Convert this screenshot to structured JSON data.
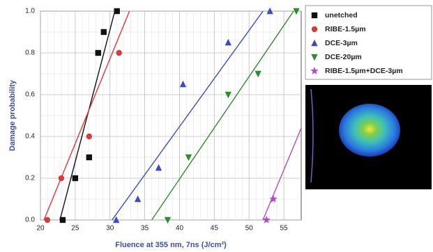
{
  "chart_data": {
    "type": "scatter",
    "xlabel": "Fluence at 355 nm, 7ns (J/cm²)",
    "ylabel": "Damage probability",
    "xlim": [
      20,
      57.5
    ],
    "ylim": [
      0,
      1
    ],
    "xticks": [
      20,
      25,
      30,
      35,
      40,
      45,
      50,
      55
    ],
    "yticks": [
      {
        "value": 0,
        "label": "0.0"
      },
      0.2,
      0.4,
      0.6,
      0.8,
      {
        "value": 1,
        "label": "1.0"
      }
    ],
    "grid": true,
    "legend": "upper right",
    "series": [
      {
        "name": "unetched",
        "color": "#111111",
        "marker": "square",
        "x": [
          23.2,
          25,
          27,
          28.3,
          29.1,
          31
        ],
        "values": [
          0,
          0.2,
          0.3,
          0.8,
          0.9,
          1.0
        ],
        "fit": {
          "x": [
            22.8,
            30.7
          ],
          "y": [
            0,
            1
          ]
        }
      },
      {
        "name": "RIBE-1.5µm",
        "color": "#d93a3a",
        "marker": "circle",
        "x": [
          21,
          23,
          27,
          31.3
        ],
        "values": [
          0,
          0.2,
          0.4,
          0.8
        ],
        "fit": {
          "x": [
            20.5,
            32.8
          ],
          "y": [
            0,
            1
          ]
        }
      },
      {
        "name": "DCE-3µm",
        "color": "#3b4bc8",
        "marker": "triangle-up",
        "x": [
          30.9,
          34,
          37,
          40.5,
          47,
          53
        ],
        "values": [
          0,
          0.1,
          0.25,
          0.65,
          0.85,
          1.0
        ],
        "fit": {
          "x": [
            30.3,
            52
          ],
          "y": [
            0,
            1
          ]
        }
      },
      {
        "name": "DCE-20µm",
        "color": "#2e8b2e",
        "marker": "triangle-down",
        "x": [
          38.3,
          41.3,
          47,
          51.3,
          56.8
        ],
        "values": [
          0,
          0.3,
          0.6,
          0.7,
          1.0
        ],
        "fit": {
          "x": [
            36,
            56.4
          ],
          "y": [
            0,
            1
          ]
        }
      },
      {
        "name": "RIBE-1.5µm+DCE-3µm",
        "color": "#b04ac8",
        "marker": "star",
        "x": [
          52.5,
          53.5
        ],
        "values": [
          0,
          0.1
        ],
        "fit": {
          "x": [
            52,
            57.5
          ],
          "y": [
            0,
            0.44
          ]
        }
      }
    ]
  }
}
